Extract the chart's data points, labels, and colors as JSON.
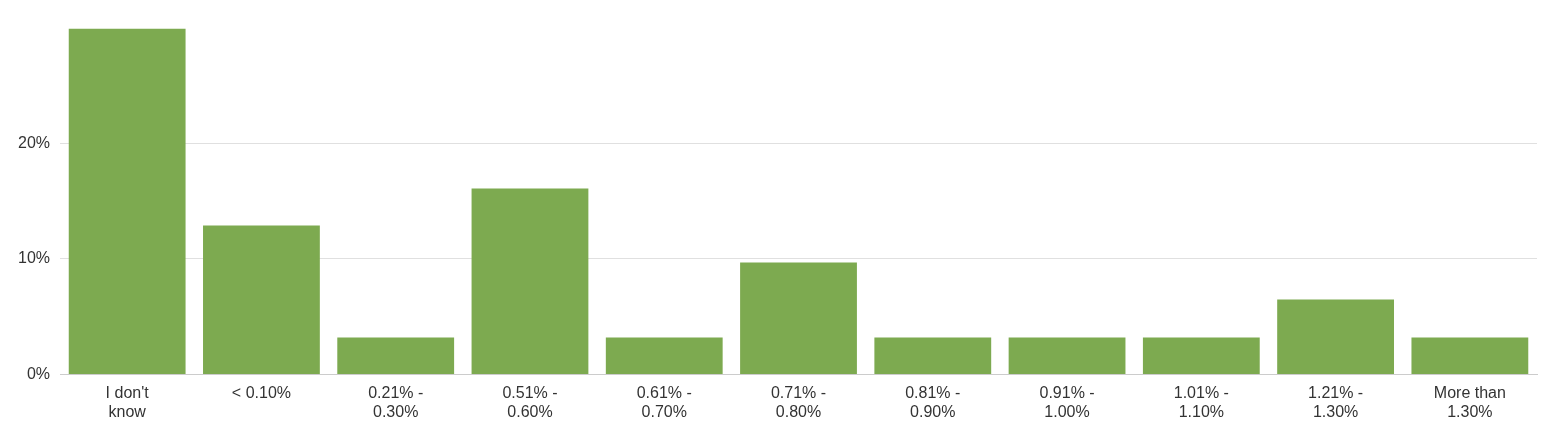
{
  "chart_data": {
    "type": "bar",
    "categories": [
      "I don't know",
      "< 0.10%",
      "0.21% - 0.30%",
      "0.51% - 0.60%",
      "0.61% - 0.70%",
      "0.71% - 0.80%",
      "0.81% - 0.90%",
      "0.91% - 1.00%",
      "1.01% - 1.10%",
      "1.21% - 1.30%",
      "More than 1.30%"
    ],
    "values": [
      29.9,
      12.9,
      3.2,
      16.1,
      3.2,
      9.7,
      3.2,
      3.2,
      3.2,
      6.5,
      3.2
    ],
    "color": "#7daa50",
    "ylim": [
      0,
      30
    ],
    "yticks": [
      {
        "value": 0,
        "label": "0%"
      },
      {
        "value": 10,
        "label": "10%"
      },
      {
        "value": 20,
        "label": "20%"
      }
    ],
    "grid": "y",
    "legend": false
  }
}
